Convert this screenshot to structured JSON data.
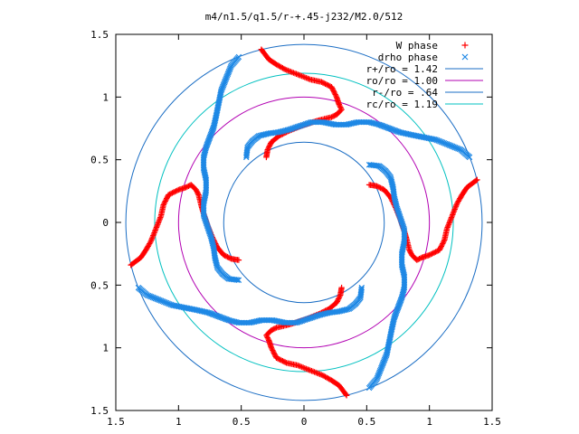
{
  "chart_data": {
    "type": "scatter",
    "title": "m4/n1.5/q1.5/r-+.45-j232/M2.0/512",
    "xlabel": "",
    "ylabel": "",
    "xlim": [
      -1.5,
      1.5
    ],
    "ylim": [
      -1.5,
      1.5
    ],
    "x_ticks": [
      -1.5,
      -1,
      -0.5,
      0,
      0.5,
      1,
      1.5
    ],
    "y_ticks": [
      -1.5,
      -1,
      -0.5,
      0,
      0.5,
      1,
      1.5
    ],
    "x_tick_labels": [
      "1.5",
      "1",
      "0.5",
      "0",
      "0.5",
      "1",
      "1.5"
    ],
    "y_tick_labels": [
      "1.5",
      "1",
      "0.5",
      "0",
      "0.5",
      "1",
      "1.5"
    ],
    "grid": false,
    "legend_position": "top-right",
    "symmetry": "4-fold (90° rotations)",
    "series": [
      {
        "name": "W phase",
        "marker": "+",
        "color": "#ff0000",
        "arm_points": [
          [
            -0.34,
            1.38
          ],
          [
            -0.28,
            1.3
          ],
          [
            -0.22,
            1.26
          ],
          [
            -0.15,
            1.22
          ],
          [
            -0.05,
            1.18
          ],
          [
            0.05,
            1.14
          ],
          [
            0.14,
            1.12
          ],
          [
            0.22,
            1.08
          ],
          [
            0.26,
            1.0
          ],
          [
            0.28,
            0.94
          ],
          [
            0.3,
            0.9
          ],
          [
            0.26,
            0.86
          ],
          [
            0.22,
            0.84
          ],
          [
            0.14,
            0.82
          ],
          [
            0.07,
            0.8
          ],
          [
            -0.02,
            0.77
          ],
          [
            -0.12,
            0.73
          ],
          [
            -0.2,
            0.69
          ],
          [
            -0.26,
            0.64
          ],
          [
            -0.29,
            0.58
          ],
          [
            -0.3,
            0.52
          ]
        ]
      },
      {
        "name": "drho phase",
        "marker": "x",
        "color": "#1e88e5",
        "arm_points": [
          [
            -0.52,
            1.32
          ],
          [
            -0.58,
            1.25
          ],
          [
            -0.62,
            1.15
          ],
          [
            -0.66,
            1.05
          ],
          [
            -0.68,
            0.95
          ],
          [
            -0.7,
            0.85
          ],
          [
            -0.72,
            0.76
          ],
          [
            -0.75,
            0.68
          ],
          [
            -0.78,
            0.6
          ],
          [
            -0.8,
            0.52
          ],
          [
            -0.8,
            0.43
          ],
          [
            -0.78,
            0.34
          ],
          [
            -0.78,
            0.25
          ],
          [
            -0.8,
            0.15
          ],
          [
            -0.8,
            0.06
          ],
          [
            -0.77,
            -0.03
          ],
          [
            -0.74,
            -0.12
          ],
          [
            -0.72,
            -0.2
          ],
          [
            -0.71,
            -0.28
          ],
          [
            -0.69,
            -0.36
          ],
          [
            -0.65,
            -0.41
          ],
          [
            -0.6,
            -0.45
          ],
          [
            -0.52,
            -0.46
          ]
        ]
      },
      {
        "name": "r+/ro = 1.42",
        "type": "circle",
        "radius": 1.42,
        "color": "#1a6dc4"
      },
      {
        "name": "ro/ro = 1.00",
        "type": "circle",
        "radius": 1.0,
        "color": "#b200b2"
      },
      {
        "name": "r-/ro = .64",
        "type": "circle",
        "radius": 0.64,
        "color": "#1a6dc4"
      },
      {
        "name": "rc/ro = 1.19",
        "type": "circle",
        "radius": 1.19,
        "color": "#00c0c0"
      }
    ]
  }
}
